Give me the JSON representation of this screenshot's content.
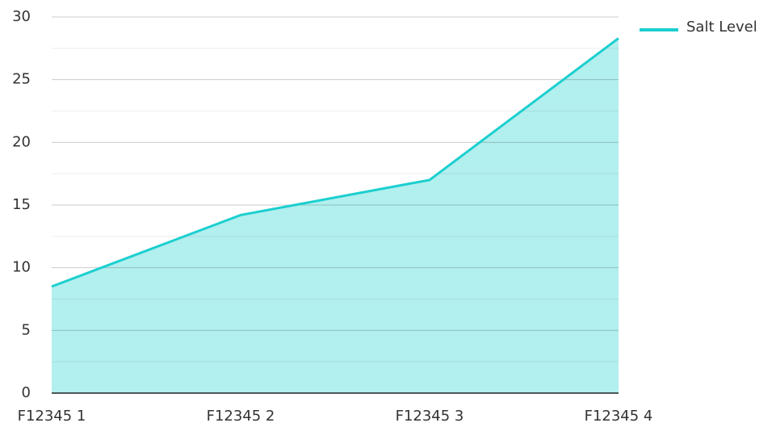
{
  "chart_data": {
    "type": "area",
    "categories": [
      "F12345 1",
      "F12345 2",
      "F12345 3",
      "F12345 4"
    ],
    "series": [
      {
        "name": "Salt Level",
        "color": "#1ccfcf",
        "fill": "#b2efef",
        "values": [
          8.5,
          14.2,
          17.0,
          28.3
        ]
      }
    ],
    "ylim": [
      0,
      30
    ],
    "yticks": [
      0,
      5,
      10,
      15,
      20,
      25,
      30
    ],
    "minor_yticks": [
      2.5,
      7.5,
      12.5,
      17.5,
      22.5,
      27.5
    ],
    "grid": true,
    "legend": "top-right"
  }
}
